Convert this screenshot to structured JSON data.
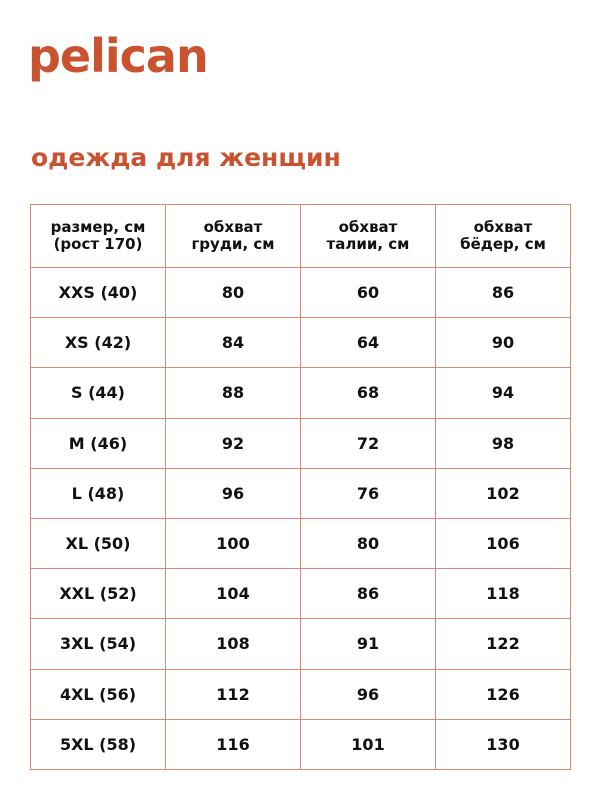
{
  "brand": {
    "logo": "pelican",
    "color": "#c9532f"
  },
  "title": "одежда для женщин",
  "table": {
    "headers": [
      [
        "размер, см",
        "(рост 170)"
      ],
      [
        "обхват",
        "груди, см"
      ],
      [
        "обхват",
        "талии, см"
      ],
      [
        "обхват",
        "бёдер, см"
      ]
    ],
    "rows": [
      [
        "XXS (40)",
        "80",
        "60",
        "86"
      ],
      [
        "XS (42)",
        "84",
        "64",
        "90"
      ],
      [
        "S (44)",
        "88",
        "68",
        "94"
      ],
      [
        "M (46)",
        "92",
        "72",
        "98"
      ],
      [
        "L (48)",
        "96",
        "76",
        "102"
      ],
      [
        "XL (50)",
        "100",
        "80",
        "106"
      ],
      [
        "XXL (52)",
        "104",
        "86",
        "118"
      ],
      [
        "3XL (54)",
        "108",
        "91",
        "122"
      ],
      [
        "4XL (56)",
        "112",
        "96",
        "126"
      ],
      [
        "5XL (58)",
        "116",
        "101",
        "130"
      ]
    ]
  }
}
